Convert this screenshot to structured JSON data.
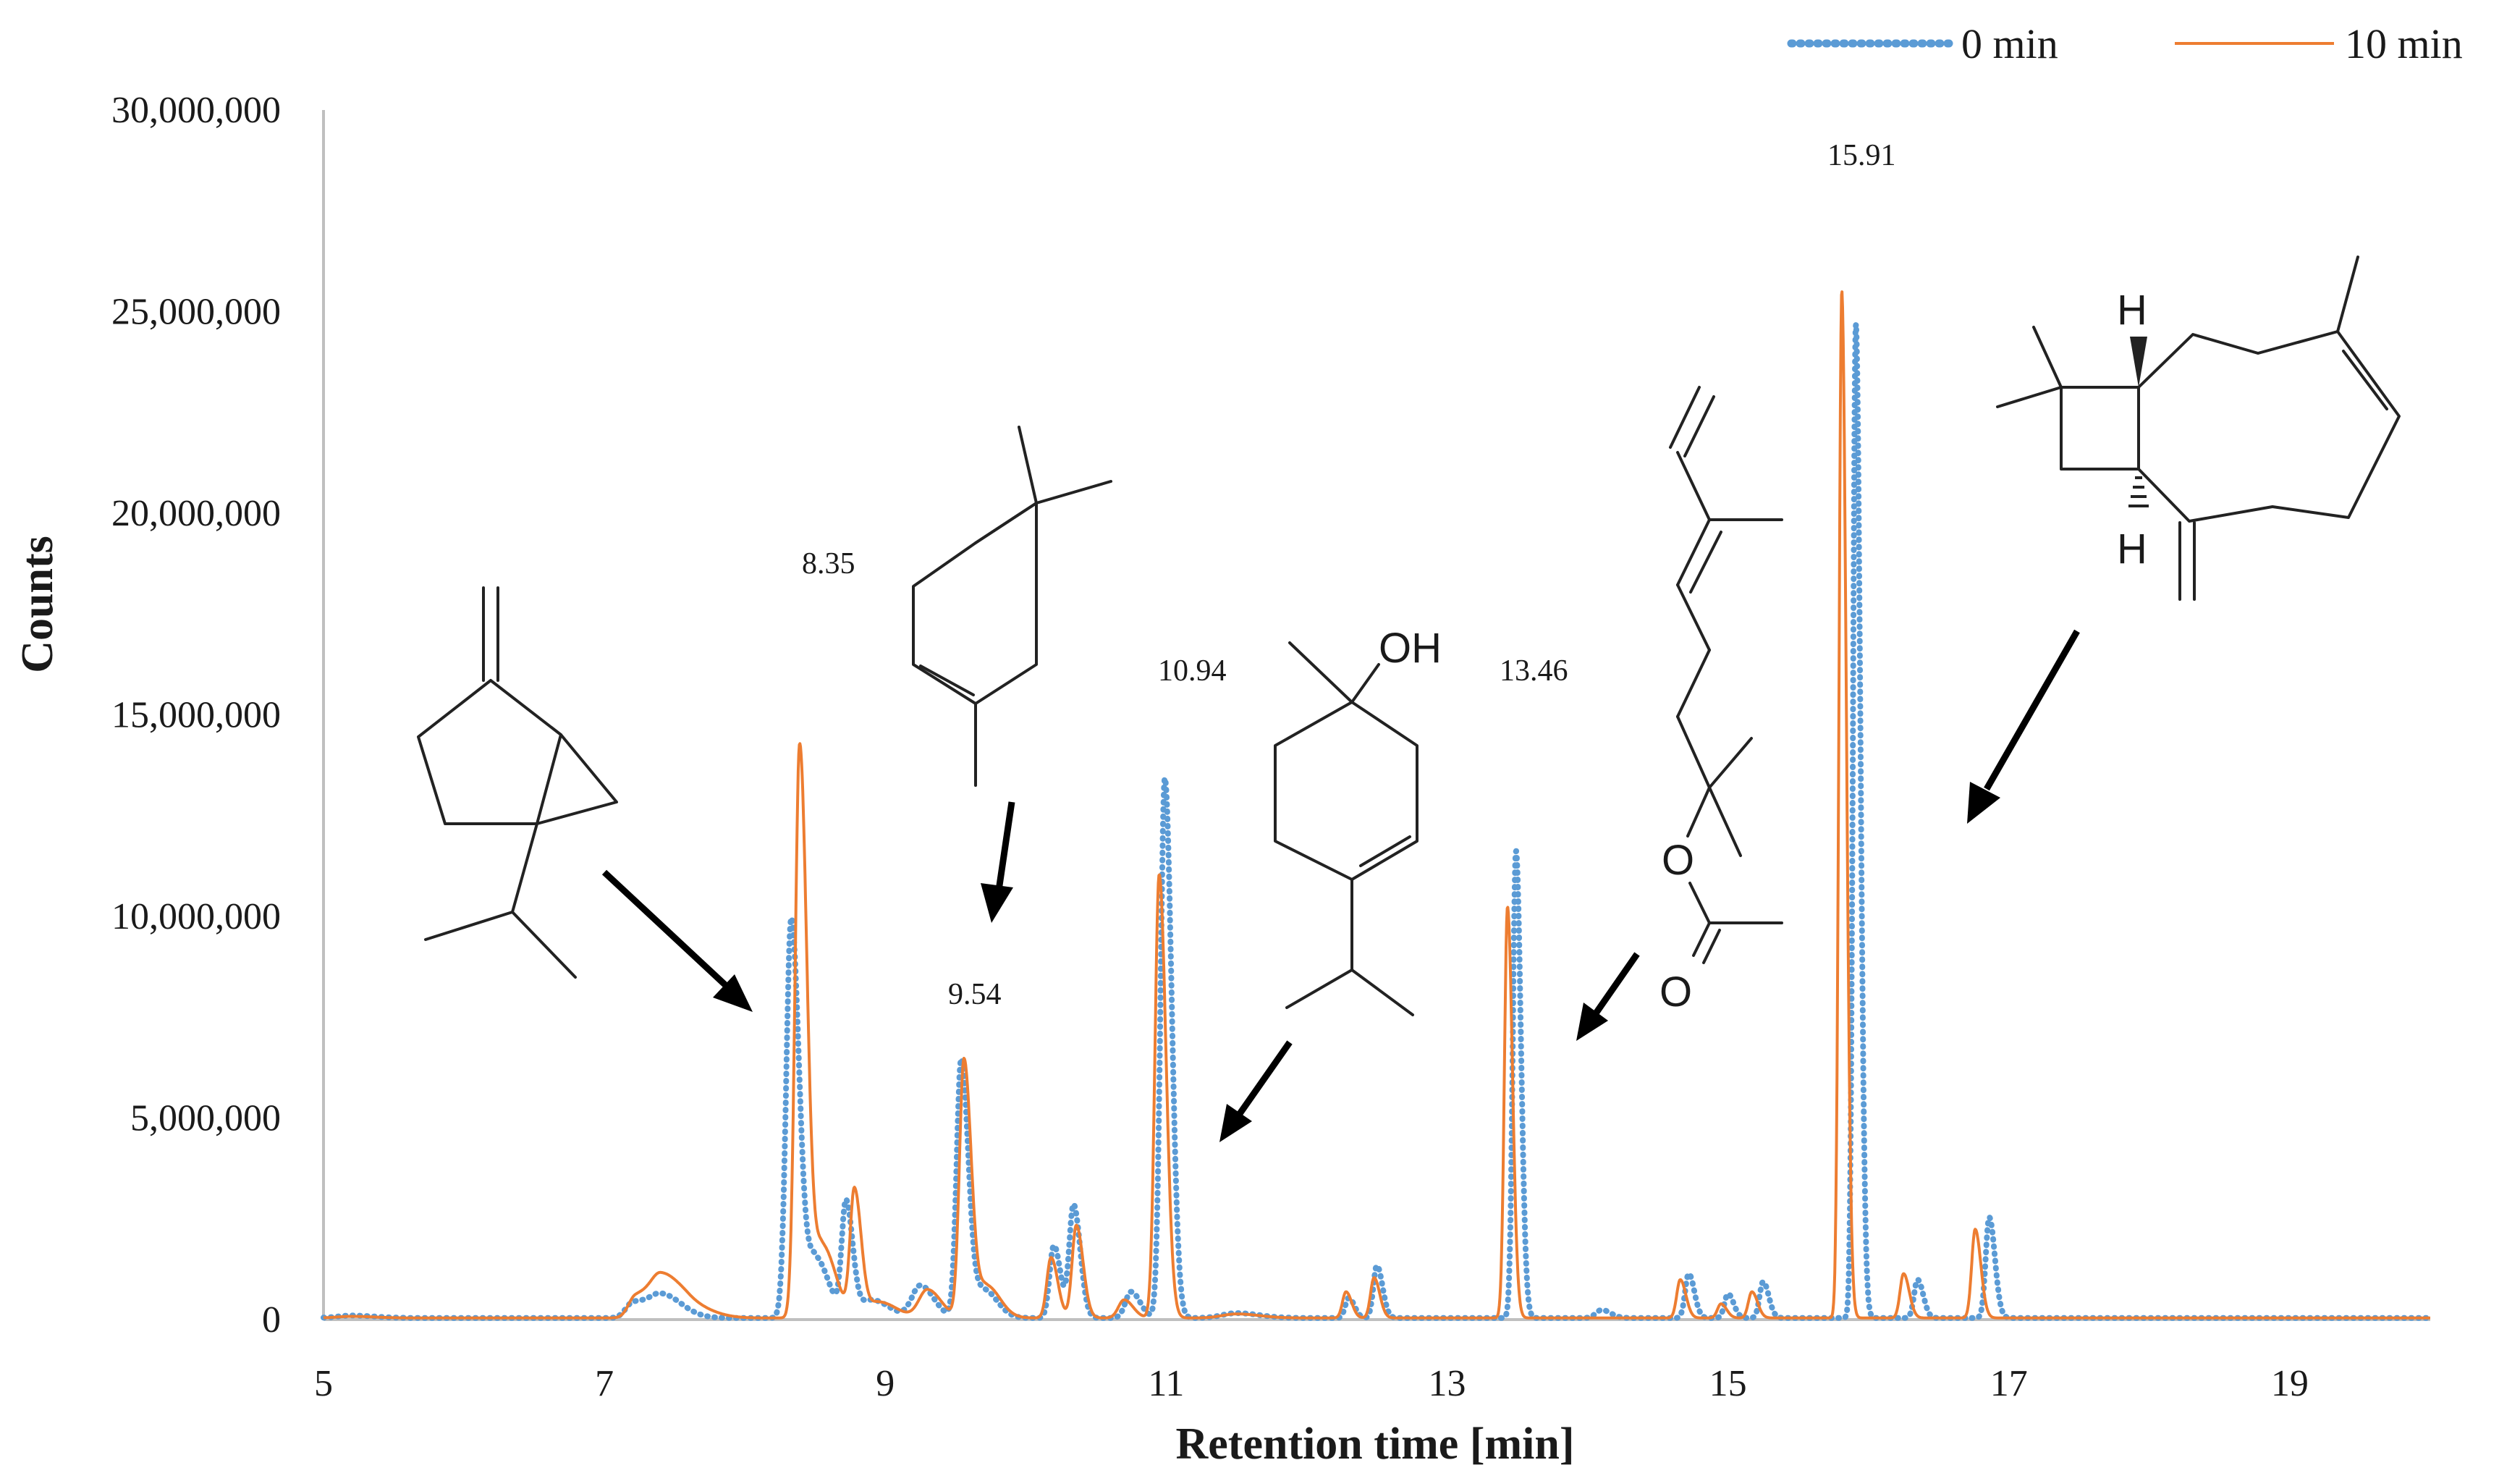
{
  "chart_data": {
    "type": "line",
    "xlabel": "Retention time [min]",
    "ylabel": "Counts",
    "xlim": [
      5,
      20
    ],
    "ylim": [
      0,
      30000000
    ],
    "x_ticks": [
      5,
      7,
      9,
      11,
      13,
      15,
      17,
      19
    ],
    "x_tick_labels": [
      "5",
      "7",
      "9",
      "11",
      "13",
      "15",
      "17",
      "19"
    ],
    "y_ticks": [
      0,
      5000000,
      10000000,
      15000000,
      20000000,
      25000000,
      30000000
    ],
    "y_tick_labels": [
      "0",
      "5,000,000",
      "10,000,000",
      "15,000,000",
      "20,000,000",
      "25,000,000",
      "30,000,000"
    ],
    "grid": false,
    "legend_position": "top-right",
    "baseline": 40000,
    "series": [
      {
        "name": "0 min",
        "color": "#5b9bd5",
        "style": "dotted",
        "peaks": [
          {
            "x": 5.2,
            "y": 60000,
            "w": 0.1
          },
          {
            "x": 7.2,
            "y": 350000,
            "w": 0.05
          },
          {
            "x": 7.4,
            "y": 600000,
            "w": 0.09
          },
          {
            "x": 8.33,
            "y": 9900000,
            "w": 0.035
          },
          {
            "x": 8.5,
            "y": 1500000,
            "w": 0.06
          },
          {
            "x": 8.72,
            "y": 2800000,
            "w": 0.03
          },
          {
            "x": 8.9,
            "y": 450000,
            "w": 0.08
          },
          {
            "x": 9.25,
            "y": 800000,
            "w": 0.06
          },
          {
            "x": 9.54,
            "y": 6400000,
            "w": 0.032
          },
          {
            "x": 9.7,
            "y": 700000,
            "w": 0.06
          },
          {
            "x": 10.2,
            "y": 1800000,
            "w": 0.03
          },
          {
            "x": 10.34,
            "y": 2800000,
            "w": 0.03
          },
          {
            "x": 10.75,
            "y": 650000,
            "w": 0.04
          },
          {
            "x": 10.99,
            "y": 13400000,
            "w": 0.03
          },
          {
            "x": 11.5,
            "y": 120000,
            "w": 0.1
          },
          {
            "x": 12.3,
            "y": 500000,
            "w": 0.025
          },
          {
            "x": 12.5,
            "y": 1300000,
            "w": 0.025
          },
          {
            "x": 13.49,
            "y": 11600000,
            "w": 0.022
          },
          {
            "x": 14.1,
            "y": 200000,
            "w": 0.04
          },
          {
            "x": 14.72,
            "y": 1100000,
            "w": 0.025
          },
          {
            "x": 15.0,
            "y": 600000,
            "w": 0.025
          },
          {
            "x": 15.25,
            "y": 900000,
            "w": 0.025
          },
          {
            "x": 15.91,
            "y": 24700000,
            "w": 0.02
          },
          {
            "x": 16.35,
            "y": 950000,
            "w": 0.025
          },
          {
            "x": 16.86,
            "y": 2500000,
            "w": 0.025
          }
        ]
      },
      {
        "name": "10 min",
        "color": "#ed7d31",
        "style": "solid",
        "peaks": [
          {
            "x": 5.2,
            "y": 40000,
            "w": 0.1
          },
          {
            "x": 7.22,
            "y": 500000,
            "w": 0.05
          },
          {
            "x": 7.4,
            "y": 1050000,
            "w": 0.08
          },
          {
            "x": 7.6,
            "y": 300000,
            "w": 0.1
          },
          {
            "x": 8.39,
            "y": 14200000,
            "w": 0.032
          },
          {
            "x": 8.55,
            "y": 1800000,
            "w": 0.06
          },
          {
            "x": 8.78,
            "y": 3100000,
            "w": 0.03
          },
          {
            "x": 8.95,
            "y": 400000,
            "w": 0.08
          },
          {
            "x": 9.3,
            "y": 700000,
            "w": 0.06
          },
          {
            "x": 9.56,
            "y": 6400000,
            "w": 0.032
          },
          {
            "x": 9.72,
            "y": 800000,
            "w": 0.06
          },
          {
            "x": 10.18,
            "y": 1500000,
            "w": 0.03
          },
          {
            "x": 10.36,
            "y": 2300000,
            "w": 0.03
          },
          {
            "x": 10.7,
            "y": 450000,
            "w": 0.04
          },
          {
            "x": 10.95,
            "y": 11000000,
            "w": 0.03
          },
          {
            "x": 11.5,
            "y": 100000,
            "w": 0.1
          },
          {
            "x": 12.28,
            "y": 650000,
            "w": 0.025
          },
          {
            "x": 12.48,
            "y": 1000000,
            "w": 0.025
          },
          {
            "x": 13.43,
            "y": 10200000,
            "w": 0.022
          },
          {
            "x": 14.66,
            "y": 950000,
            "w": 0.025
          },
          {
            "x": 14.95,
            "y": 350000,
            "w": 0.025
          },
          {
            "x": 15.17,
            "y": 650000,
            "w": 0.025
          },
          {
            "x": 15.81,
            "y": 25500000,
            "w": 0.02
          },
          {
            "x": 16.25,
            "y": 1100000,
            "w": 0.025
          },
          {
            "x": 16.76,
            "y": 2200000,
            "w": 0.025
          }
        ]
      }
    ],
    "annotations": [
      {
        "text": "8.35",
        "x": 8.35
      },
      {
        "text": "9.54",
        "x": 9.54
      },
      {
        "text": "10.94",
        "x": 10.94
      },
      {
        "text": "13.46",
        "x": 13.46
      },
      {
        "text": "15.91",
        "x": 15.91
      }
    ]
  },
  "structure_labels": {
    "hydroxyl": "OH",
    "hydrogen_top": "H",
    "hydrogen_bottom": "H",
    "oxygen_ester": "O",
    "oxygen_carbonyl": "O"
  }
}
